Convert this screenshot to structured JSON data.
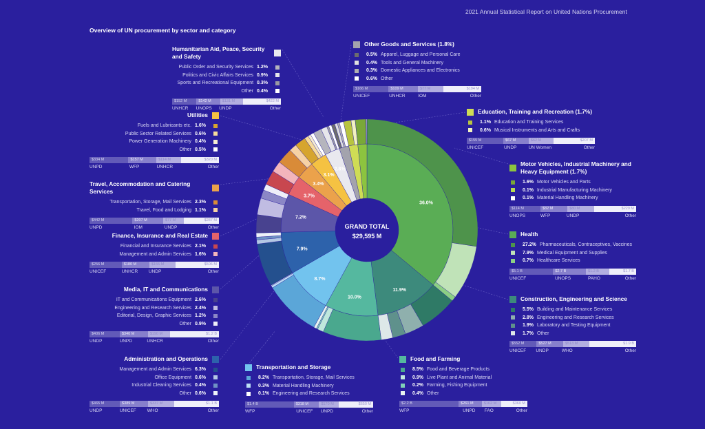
{
  "header": {
    "report_title": "2021 Annual Statistical Report on United Nations Procurement",
    "main_title": "Overview of UN procurement by sector and category"
  },
  "center": {
    "label": "GRAND TOTAL",
    "total": "$29,595 M"
  },
  "sectors": [
    {
      "key": "health",
      "title": "Health",
      "pct": 36.0,
      "pct_label": "36.0%",
      "color": "#5aad55",
      "items": [
        {
          "pct": "27.2%",
          "v": 27.2,
          "label": "Pharmaceuticals, Contraceptives, Vaccines",
          "color": "#4e934b"
        },
        {
          "pct": "7.9%",
          "v": 7.9,
          "label": "Medical Equipment and Supplies",
          "color": "#c0e3b8"
        },
        {
          "pct": "0.7%",
          "v": 0.7,
          "label": "Healthcare Services",
          "color": "#8ccf84"
        }
      ],
      "agencies": [
        {
          "name": "UNICEF",
          "value": "$5.1 B",
          "m": 5100
        },
        {
          "name": "UNOPS",
          "value": "$2.7 B",
          "m": 2700
        },
        {
          "name": "PAHO",
          "value": "$1.2 B",
          "m": 1200
        },
        {
          "name": "Other",
          "value": "$1.7 B",
          "m": 1700
        }
      ]
    },
    {
      "key": "construction",
      "title": "Construction, Engineering and Science",
      "pct": 11.9,
      "pct_label": "11.9%",
      "color": "#3d8a7c",
      "items": [
        {
          "pct": "5.5%",
          "v": 5.5,
          "label": "Building and Maintenance Services",
          "color": "#2f7a66"
        },
        {
          "pct": "2.8%",
          "v": 2.8,
          "label": "Engineering and Research Services",
          "color": "#8fb0ad"
        },
        {
          "pct": "1.9%",
          "v": 1.9,
          "label": "Laboratory and Testing Equipment",
          "color": "#5f918c"
        },
        {
          "pct": "1.7%",
          "v": 1.7,
          "label": "Other",
          "color": "#dde8e8"
        }
      ],
      "agencies": [
        {
          "name": "UNICEF",
          "value": "$552 M",
          "m": 552
        },
        {
          "name": "UNDP",
          "value": "$527 M",
          "m": 527
        },
        {
          "name": "WHO",
          "value": "$513 M",
          "m": 513
        },
        {
          "name": "Other",
          "value": "$1.9 B",
          "m": 1900
        }
      ]
    },
    {
      "key": "food",
      "title": "Food and Farming",
      "pct": 10.0,
      "pct_label": "10.0%",
      "color": "#55b89f",
      "items": [
        {
          "pct": "8.5%",
          "v": 8.5,
          "label": "Food and Beverage Products",
          "color": "#4aa88e"
        },
        {
          "pct": "0.9%",
          "v": 0.9,
          "label": "Live Plant and Animal Material",
          "color": "#bfe8dc"
        },
        {
          "pct": "0.2%",
          "v": 0.2,
          "label": "Farming, Fishing Equipment",
          "color": "#7fd0b8"
        },
        {
          "pct": "0.4%",
          "v": 0.4,
          "label": "Other",
          "color": "#e8f4f0"
        }
      ],
      "agencies": [
        {
          "name": "WFP",
          "value": "$2.2 B",
          "m": 2200
        },
        {
          "name": "UNPD",
          "value": "$261 M",
          "m": 261
        },
        {
          "name": "FAO",
          "value": "$162 M",
          "m": 162
        },
        {
          "name": "Other",
          "value": "$360 M",
          "m": 360
        }
      ]
    },
    {
      "key": "transport",
      "title": "Transportation and Storage",
      "pct": 8.7,
      "pct_label": "8.7%",
      "color": "#72c3ee",
      "items": [
        {
          "pct": "8.2%",
          "v": 8.2,
          "label": "Transportation, Storage, Mail Services",
          "color": "#5ba6d8"
        },
        {
          "pct": "0.3%",
          "v": 0.3,
          "label": "Material Handling Machinery",
          "color": "#bde0f5"
        },
        {
          "pct": "0.1%",
          "v": 0.1,
          "label": "Engineering and Research Services",
          "color": "#ffffff"
        }
      ],
      "agencies": [
        {
          "name": "WFP",
          "value": "$1.4 B",
          "m": 1400
        },
        {
          "name": "UNICEF",
          "value": "$318 M",
          "m": 318
        },
        {
          "name": "UNPD",
          "value": "$170 M",
          "m": 170
        },
        {
          "name": "Other",
          "value": "$650 M",
          "m": 650
        }
      ]
    },
    {
      "key": "admin",
      "title": "Administration and Operations",
      "pct": 7.9,
      "pct_label": "7.9%",
      "color": "#2d62ab",
      "items": [
        {
          "pct": "6.3%",
          "v": 6.3,
          "label": "Management and Admin Services",
          "color": "#24508e"
        },
        {
          "pct": "0.6%",
          "v": 0.6,
          "label": "Office Equipment",
          "color": "#b4c8e4"
        },
        {
          "pct": "0.4%",
          "v": 0.4,
          "label": "Industrial Cleaning Services",
          "color": "#6f92c4"
        },
        {
          "pct": "0.6%",
          "v": 0.6,
          "label": "Other",
          "color": "#eef2f8"
        }
      ],
      "agencies": [
        {
          "name": "UNDP",
          "value": "$465 M",
          "m": 465
        },
        {
          "name": "UNICEF",
          "value": "$389 M",
          "m": 389
        },
        {
          "name": "WHO",
          "value": "$337 M",
          "m": 337
        },
        {
          "name": "Other",
          "value": "$1.1 B",
          "m": 1100
        }
      ]
    },
    {
      "key": "media",
      "title": "Media, IT and Communications",
      "pct": 7.2,
      "pct_label": "7.2%",
      "color": "#5c56a9",
      "items": [
        {
          "pct": "2.6%",
          "v": 2.6,
          "label": "IT and Communications Equipment",
          "color": "#48428f"
        },
        {
          "pct": "2.4%",
          "v": 2.4,
          "label": "Engineering and Research Services",
          "color": "#c0bce2"
        },
        {
          "pct": "1.2%",
          "v": 1.2,
          "label": "Editorial, Design, Graphic Services",
          "color": "#8b87c6"
        },
        {
          "pct": "0.9%",
          "v": 0.9,
          "label": "Other",
          "color": "#eeeef8"
        }
      ],
      "agencies": [
        {
          "name": "UNDP",
          "value": "$406 M",
          "m": 406
        },
        {
          "name": "UNPD",
          "value": "$340 M",
          "m": 340
        },
        {
          "name": "UNHCR",
          "value": "$190 M",
          "m": 190
        },
        {
          "name": "Other",
          "value": "$1.2 B",
          "m": 1200
        }
      ]
    },
    {
      "key": "finance",
      "title": "Finance, Insurance and Real Estate",
      "pct": 3.7,
      "pct_label": "3.7%",
      "color": "#e5636a",
      "items": [
        {
          "pct": "2.1%",
          "v": 2.1,
          "label": "Financial and Insurance Services",
          "color": "#c8474f"
        },
        {
          "pct": "1.6%",
          "v": 1.6,
          "label": "Management and Admin Services",
          "color": "#f3b5bb"
        }
      ],
      "agencies": [
        {
          "name": "UNICEF",
          "value": "$256 M",
          "m": 256
        },
        {
          "name": "UNHCR",
          "value": "$180 M",
          "m": 180
        },
        {
          "name": "UNDP",
          "value": "$155 M",
          "m": 155
        },
        {
          "name": "Other",
          "value": "$506 M",
          "m": 506
        }
      ]
    },
    {
      "key": "travel",
      "title": "Travel, Accommodation and Catering Services",
      "pct": 3.4,
      "pct_label": "3.4%",
      "color": "#eba24b",
      "items": [
        {
          "pct": "2.3%",
          "v": 2.3,
          "label": "Transportation, Storage, Mail Services",
          "color": "#d98b38"
        },
        {
          "pct": "1.1%",
          "v": 1.1,
          "label": "Travel, Food and Lodging",
          "color": "#f6d2a4"
        }
      ],
      "agencies": [
        {
          "name": "UNPD",
          "value": "$442 M",
          "m": 442
        },
        {
          "name": "IOM",
          "value": "$207 M",
          "m": 207
        },
        {
          "name": "UNDP",
          "value": "$77 M",
          "m": 77
        },
        {
          "name": "Other",
          "value": "$287 M",
          "m": 287
        }
      ]
    },
    {
      "key": "utilities",
      "title": "Utilities",
      "pct": 3.1,
      "pct_label": "3.1%",
      "color": "#f5c242",
      "items": [
        {
          "pct": "1.6%",
          "v": 1.6,
          "label": "Fuels and Lubricants etc.",
          "color": "#d6a52e"
        },
        {
          "pct": "0.6%",
          "v": 0.6,
          "label": "Public Sector Related Services",
          "color": "#f7dc9c"
        },
        {
          "pct": "0.4%",
          "v": 0.4,
          "label": "Power Generation Machinery",
          "color": "#f5ecd2"
        },
        {
          "pct": "0.5%",
          "v": 0.5,
          "label": "Other",
          "color": "#ffffff"
        }
      ],
      "agencies": [
        {
          "name": "UNPD",
          "value": "$334 M",
          "m": 334
        },
        {
          "name": "WFP",
          "value": "$157 M",
          "m": 157
        },
        {
          "name": "UNHCR",
          "value": "$114 M",
          "m": 114
        },
        {
          "name": "Other",
          "value": "$320 M",
          "m": 320
        }
      ]
    },
    {
      "key": "humanitarian",
      "title": "Humanitarian Aid, Peace, Security and Safety",
      "pct": 2.8,
      "pct_label": "2.8%",
      "color": "#e9e9ef",
      "items": [
        {
          "pct": "1.2%",
          "v": 1.2,
          "label": "Public Order and Security Services",
          "color": "#b5b5bd"
        },
        {
          "pct": "0.9%",
          "v": 0.9,
          "label": "Politics and Civic Affairs Services",
          "color": "#e6e6ea"
        },
        {
          "pct": "0.3%",
          "v": 0.3,
          "label": "Sports and Recreational Equipment",
          "color": "#9a9aa2"
        },
        {
          "pct": "0.4%",
          "v": 0.4,
          "label": "Other",
          "color": "#ffffff"
        }
      ],
      "agencies": [
        {
          "name": "UNHCR",
          "value": "$152 M",
          "m": 152
        },
        {
          "name": "UNOPS",
          "value": "$142 M",
          "m": 142
        },
        {
          "name": "UNDP",
          "value": "$131 M",
          "m": 131
        },
        {
          "name": "Other",
          "value": "$422 M",
          "m": 422
        }
      ]
    },
    {
      "key": "othergoods",
      "title": "Other Goods and Services (1.8%)",
      "pct": 1.8,
      "pct_label": "",
      "color": "#a3a3ad",
      "items": [
        {
          "pct": "0.5%",
          "v": 0.5,
          "label": "Apparel, Luggage and Personal Care",
          "color": "#6d6d6d"
        },
        {
          "pct": "0.4%",
          "v": 0.4,
          "label": "Tools and General Machinery",
          "color": "#e0e0e0"
        },
        {
          "pct": "0.3%",
          "v": 0.3,
          "label": "Domestic Appliances and Electronics",
          "color": "#b0b0b0"
        },
        {
          "pct": "0.6%",
          "v": 0.6,
          "label": "Other",
          "color": "#ffffff"
        }
      ],
      "agencies": [
        {
          "name": "UNICEF",
          "value": "$166 M",
          "m": 166
        },
        {
          "name": "UNHCR",
          "value": "$109 M",
          "m": 109
        },
        {
          "name": "IOM",
          "value": "$77 M",
          "m": 77
        },
        {
          "name": "Other",
          "value": "$194 M",
          "m": 194
        }
      ]
    },
    {
      "key": "education",
      "title": "Education, Training and Recreation (1.7%)",
      "pct": 1.7,
      "pct_label": "",
      "color": "#cfdc55",
      "items": [
        {
          "pct": "1.1%",
          "v": 1.1,
          "label": "Education and Training Services",
          "color": "#b8c440"
        },
        {
          "pct": "0.6%",
          "v": 0.6,
          "label": "Musical Instruments and Arts and Crafts",
          "color": "#f2f2c0"
        }
      ],
      "agencies": [
        {
          "name": "UNICEF",
          "value": "$155 M",
          "m": 155
        },
        {
          "name": "UNDP",
          "value": "$67 M",
          "m": 67
        },
        {
          "name": "UN Women",
          "value": "$62 M",
          "m": 62
        },
        {
          "name": "Other",
          "value": "$207 M",
          "m": 207
        }
      ]
    },
    {
      "key": "motor",
      "title": "Motor Vehicles, Industrial Machinery and Heavy Equipment (1.7%)",
      "pct": 1.7,
      "pct_label": "",
      "color": "#8cc43f",
      "items": [
        {
          "pct": "1.6%",
          "v": 1.6,
          "label": "Motor Vehicles and Parts",
          "color": "#7aa838"
        },
        {
          "pct": "0.1%",
          "v": 0.1,
          "label": "Industrial Manufacturing Machinery",
          "color": "#b8dc50"
        },
        {
          "pct": "0.1%",
          "v": 0.1,
          "label": "Material Handling Machinery",
          "color": "#ffffff"
        }
      ],
      "agencies": [
        {
          "name": "UNOPS",
          "value": "$114 M",
          "m": 114
        },
        {
          "name": "WFP",
          "value": "$82 M",
          "m": 82
        },
        {
          "name": "UNDP",
          "value": "$80 M",
          "m": 80
        },
        {
          "name": "Other",
          "value": "$229 M",
          "m": 229
        }
      ]
    }
  ]
}
